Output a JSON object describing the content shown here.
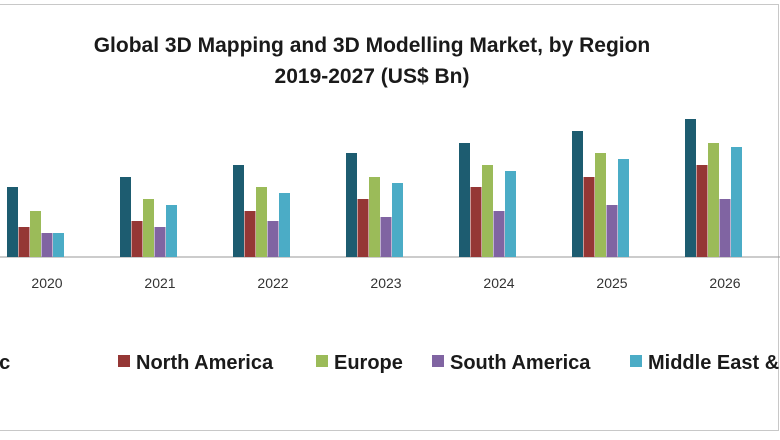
{
  "chart_data": {
    "type": "bar",
    "title": "Global 3D Mapping and 3D Modelling Market, by Region",
    "subtitle": "2019-2027 (US$ Bn)",
    "xlabel": "",
    "ylabel": "",
    "grid": false,
    "legend_position": "bottom",
    "ylim": [
      0,
      14
    ],
    "categories": [
      "2020",
      "2021",
      "2022",
      "2023",
      "2024",
      "2025",
      "2026"
    ],
    "series": [
      {
        "name": "Asia Pacific",
        "color": "#1d5c70",
        "values": [
          7.0,
          8.0,
          9.2,
          10.4,
          11.4,
          12.6,
          13.8
        ]
      },
      {
        "name": "North America",
        "color": "#953735",
        "values": [
          3.0,
          3.6,
          4.6,
          5.8,
          7.0,
          8.0,
          9.2
        ]
      },
      {
        "name": "Europe",
        "color": "#9bbb59",
        "values": [
          4.6,
          5.8,
          7.0,
          8.0,
          9.2,
          10.4,
          11.4
        ]
      },
      {
        "name": "South America",
        "color": "#8064a2",
        "values": [
          2.4,
          3.0,
          3.6,
          4.0,
          4.6,
          5.2,
          5.8
        ]
      },
      {
        "name": "Middle East & Africa",
        "color": "#4bacc6",
        "values": [
          2.4,
          5.2,
          6.4,
          7.4,
          8.6,
          9.8,
          11.0
        ]
      }
    ]
  }
}
